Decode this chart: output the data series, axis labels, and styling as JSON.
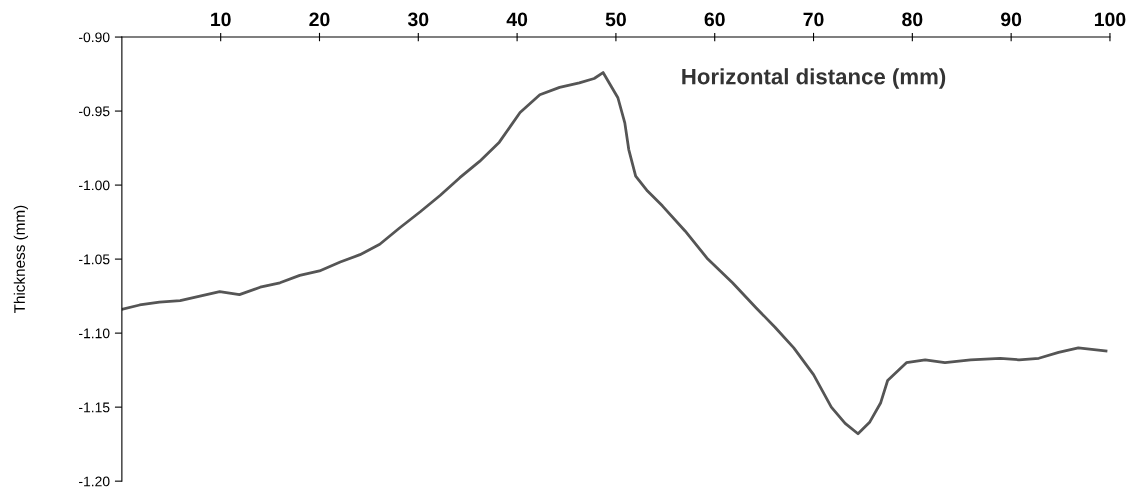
{
  "chart_data": {
    "type": "line",
    "xlabel": "Horizontal distance (mm)",
    "ylabel": "Thickness (mm)",
    "x": [
      0,
      1.8,
      3.8,
      5.9,
      7.9,
      9.9,
      11.9,
      14.0,
      16.0,
      18.0,
      20.0,
      22.1,
      24.1,
      26.1,
      28.1,
      30.2,
      32.2,
      34.2,
      36.2,
      38.2,
      40.3,
      42.3,
      44.3,
      46.3,
      47.8,
      48.7,
      50.2,
      50.9,
      51.3,
      52.0,
      53.2,
      54.7,
      57.0,
      59.3,
      61.8,
      64.2,
      66.1,
      68.0,
      70.0,
      71.8,
      73.2,
      74.5,
      75.7,
      76.8,
      77.5,
      79.4,
      81.3,
      83.3,
      85.9,
      88.9,
      90.8,
      92.8,
      94.8,
      96.8,
      99.6
    ],
    "series": [
      {
        "color": "#555555",
        "values": [
          -1.084,
          -1.081,
          -1.079,
          -1.078,
          -1.075,
          -1.072,
          -1.074,
          -1.069,
          -1.066,
          -1.061,
          -1.058,
          -1.052,
          -1.047,
          -1.04,
          -1.029,
          -1.018,
          -1.007,
          -0.995,
          -0.984,
          -0.971,
          -0.951,
          -0.939,
          -0.934,
          -0.931,
          -0.928,
          -0.924,
          -0.941,
          -0.958,
          -0.976,
          -0.994,
          -1.004,
          -1.014,
          -1.031,
          -1.05,
          -1.066,
          -1.083,
          -1.096,
          -1.11,
          -1.128,
          -1.15,
          -1.161,
          -1.168,
          -1.16,
          -1.147,
          -1.132,
          -1.12,
          -1.118,
          -1.12,
          -1.118,
          -1.117,
          -1.118,
          -1.117,
          -1.113,
          -1.11,
          -1.112
        ]
      }
    ],
    "xlim": [
      0,
      100
    ],
    "xticks": [
      10,
      20,
      30,
      40,
      50,
      60,
      70,
      80,
      90,
      100
    ],
    "ylim": [
      -1.2,
      -0.9
    ],
    "yticks": [
      {
        "value": -0.9,
        "label": "-0.90"
      },
      {
        "value": -0.95,
        "label": "-0.95"
      },
      {
        "value": -1.0,
        "label": "-1.00"
      },
      {
        "value": -1.05,
        "label": "-1.05"
      },
      {
        "value": -1.1,
        "label": "-1.10"
      },
      {
        "value": -1.15,
        "label": "-1.15"
      },
      {
        "value": -1.2,
        "label": "-1.20"
      }
    ],
    "grid": false,
    "marker": "none",
    "line_style": "solid"
  }
}
